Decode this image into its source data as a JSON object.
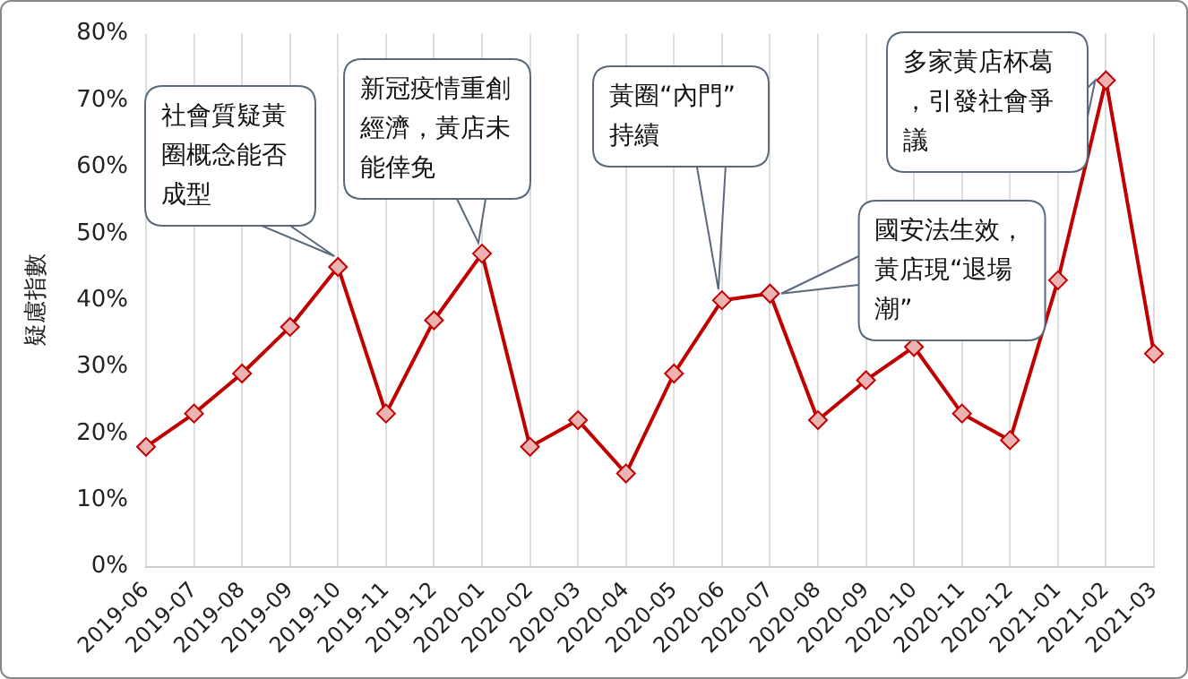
{
  "chart_data": {
    "type": "line",
    "ylabel": "疑慮指數",
    "categories": [
      "2019-06",
      "2019-07",
      "2019-08",
      "2019-09",
      "2019-10",
      "2019-11",
      "2019-12",
      "2020-01",
      "2020-02",
      "2020-03",
      "2020-04",
      "2020-05",
      "2020-06",
      "2020-07",
      "2020-08",
      "2020-09",
      "2020-10",
      "2020-11",
      "2020-12",
      "2021-01",
      "2021-02",
      "2021-03"
    ],
    "series": [
      {
        "color": "#c00000",
        "values": [
          18,
          23,
          29,
          36,
          45,
          23,
          37,
          47,
          18,
          22,
          14,
          29,
          40,
          41,
          22,
          28,
          33,
          23,
          19,
          43,
          73,
          32
        ]
      }
    ],
    "ylim": [
      0,
      80
    ],
    "yticks": [
      {
        "value": 0,
        "label": "0%"
      },
      {
        "value": 10,
        "label": "10%"
      },
      {
        "value": 20,
        "label": "20%"
      },
      {
        "value": 30,
        "label": "30%"
      },
      {
        "value": 40,
        "label": "40%"
      },
      {
        "value": 50,
        "label": "50%"
      },
      {
        "value": 60,
        "label": "60%"
      },
      {
        "value": 70,
        "label": "70%"
      },
      {
        "value": 80,
        "label": "80%"
      }
    ],
    "grid": "x",
    "marker": "diamond",
    "line_style": "solid",
    "legend": false,
    "annotations": [
      {
        "text": "社會質疑黃圈概念能否成型",
        "x": "2019-10",
        "y": 45
      },
      {
        "text": "新冠疫情重創經濟，黃店未能倖免",
        "x": "2020-01",
        "y": 47
      },
      {
        "text": "黃圈“內門”持續",
        "x": "2020-06",
        "y": 40
      },
      {
        "text": "國安法生效，黃店現“退場潮”",
        "x": "2020-07",
        "y": 41
      },
      {
        "text": "多家黃店杯葛，引發社會爭議",
        "x": "2021-02",
        "y": 73
      }
    ]
  }
}
